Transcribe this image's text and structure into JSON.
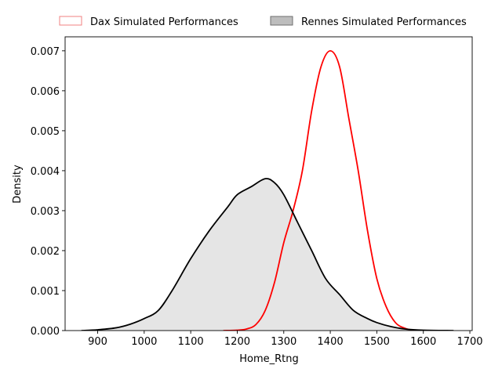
{
  "chart_data": {
    "type": "area",
    "xlabel": "Home_Rtng",
    "ylabel": "Density",
    "xlim": [
      830,
      1705
    ],
    "ylim": [
      0,
      0.00735
    ],
    "xticks": [
      "900",
      "1000",
      "1100",
      "1200",
      "1300",
      "1400",
      "1500",
      "1600",
      "1700"
    ],
    "yticks": [
      "0.000",
      "0.001",
      "0.002",
      "0.003",
      "0.004",
      "0.005",
      "0.006",
      "0.007"
    ],
    "legend_position": "top-center",
    "series": [
      {
        "name": "Dax Simulated Performances",
        "color": "#ff0000",
        "fill": false,
        "points": [
          [
            1170,
            0.0
          ],
          [
            1200,
            1e-05
          ],
          [
            1220,
            4e-05
          ],
          [
            1240,
            0.00015
          ],
          [
            1260,
            0.0005
          ],
          [
            1280,
            0.0012
          ],
          [
            1300,
            0.0022
          ],
          [
            1320,
            0.003
          ],
          [
            1340,
            0.004
          ],
          [
            1360,
            0.0055
          ],
          [
            1380,
            0.0066
          ],
          [
            1400,
            0.007
          ],
          [
            1420,
            0.0066
          ],
          [
            1440,
            0.0053
          ],
          [
            1460,
            0.004
          ],
          [
            1480,
            0.0025
          ],
          [
            1500,
            0.0013
          ],
          [
            1520,
            0.0006
          ],
          [
            1540,
            0.0002
          ],
          [
            1560,
            6e-05
          ],
          [
            1580,
            1e-05
          ],
          [
            1620,
            0.0
          ]
        ]
      },
      {
        "name": "Rennes Simulated Performances",
        "color": "#000000",
        "fill": true,
        "points": [
          [
            865,
            0.0
          ],
          [
            900,
            2e-05
          ],
          [
            940,
            7e-05
          ],
          [
            970,
            0.00016
          ],
          [
            1000,
            0.0003
          ],
          [
            1030,
            0.0005
          ],
          [
            1060,
            0.001
          ],
          [
            1100,
            0.0018
          ],
          [
            1140,
            0.0025
          ],
          [
            1180,
            0.0031
          ],
          [
            1200,
            0.0034
          ],
          [
            1230,
            0.0036
          ],
          [
            1260,
            0.0038
          ],
          [
            1280,
            0.0037
          ],
          [
            1300,
            0.0034
          ],
          [
            1330,
            0.0027
          ],
          [
            1360,
            0.002
          ],
          [
            1390,
            0.0013
          ],
          [
            1420,
            0.0009
          ],
          [
            1450,
            0.0005
          ],
          [
            1480,
            0.0003
          ],
          [
            1500,
            0.0002
          ],
          [
            1530,
            0.0001
          ],
          [
            1560,
            4e-05
          ],
          [
            1600,
            1e-05
          ],
          [
            1665,
            0.0
          ]
        ]
      }
    ]
  }
}
